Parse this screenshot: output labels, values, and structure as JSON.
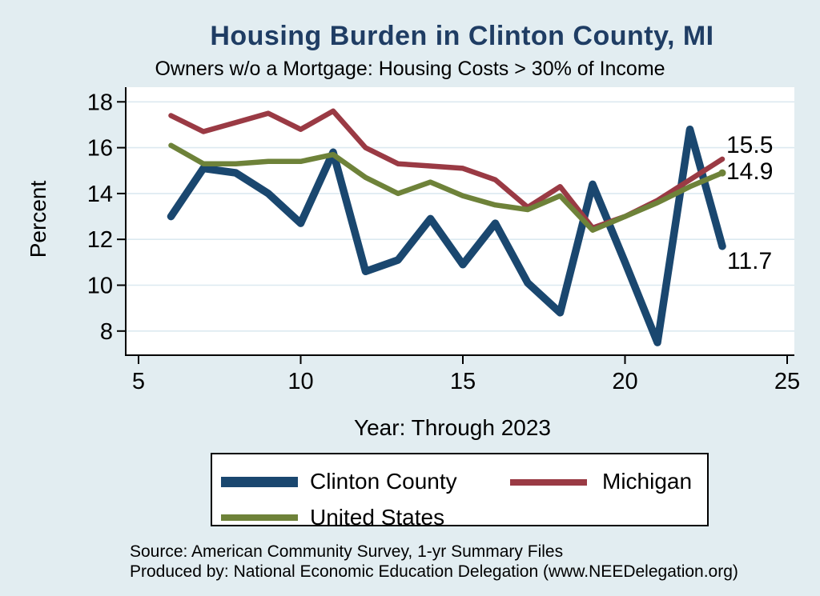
{
  "title": "Housing Burden in Clinton County, MI",
  "subtitle": "Owners w/o a Mortgage: Housing Costs > 30% of Income",
  "chart_data": {
    "type": "line",
    "x": [
      6,
      7,
      8,
      9,
      10,
      11,
      12,
      13,
      14,
      15,
      16,
      17,
      18,
      19,
      20,
      21,
      22,
      23
    ],
    "xlabel": "Year: Through 2023",
    "ylabel": "Percent",
    "xlim": [
      5,
      25
    ],
    "ylim": [
      7,
      18.6
    ],
    "x_ticks": [
      5,
      10,
      15,
      20,
      25
    ],
    "y_ticks": [
      18,
      16,
      14,
      12,
      10,
      8
    ],
    "grid": true,
    "legend_position": "bottom",
    "background_color": "#e2edf1",
    "plot_background": "#ffffff",
    "gridline_color": "#dce9f0",
    "series": [
      {
        "name": "Clinton County",
        "color": "#1a476f",
        "width": 9.5,
        "values": [
          13.0,
          15.1,
          14.9,
          14.0,
          12.7,
          15.8,
          10.6,
          11.1,
          12.9,
          10.9,
          12.7,
          10.1,
          8.8,
          14.4,
          11.0,
          7.5,
          16.8,
          11.7
        ]
      },
      {
        "name": "Michigan",
        "color": "#9a3a44",
        "width": 6.5,
        "values": [
          17.4,
          16.7,
          17.1,
          17.5,
          16.8,
          17.6,
          16.0,
          15.3,
          15.2,
          15.1,
          14.6,
          13.4,
          14.3,
          12.5,
          13.0,
          13.7,
          14.6,
          15.5
        ]
      },
      {
        "name": "United States",
        "color": "#6e8239",
        "width": 6.5,
        "end_marker": true,
        "values": [
          16.1,
          15.3,
          15.3,
          15.4,
          15.4,
          15.7,
          14.7,
          14.0,
          14.5,
          13.9,
          13.5,
          13.3,
          13.9,
          12.4,
          13.0,
          13.6,
          14.3,
          14.9
        ]
      }
    ],
    "end_labels": [
      {
        "text": "15.5",
        "series": "Michigan"
      },
      {
        "text": "14.9",
        "series": "United States"
      },
      {
        "text": "11.7",
        "series": "Clinton County"
      }
    ]
  },
  "footer": {
    "line1": "Source: American Community Survey, 1-yr Summary Files",
    "line2": "Produced by: National Economic Education Delegation (www.NEEDelegation.org)"
  }
}
